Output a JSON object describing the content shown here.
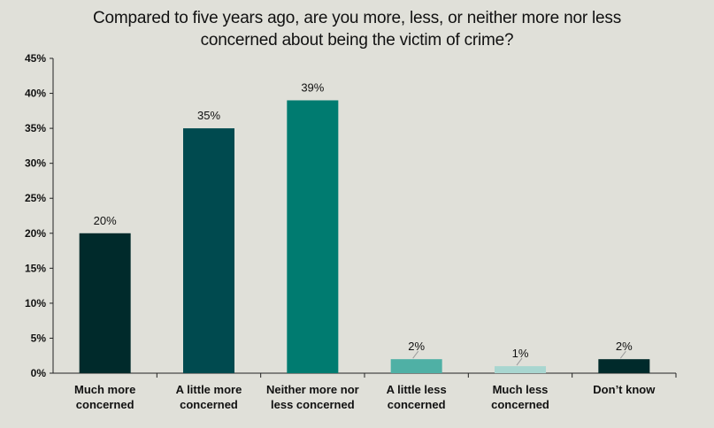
{
  "chart_data": {
    "type": "bar",
    "title_lines": [
      "Compared to five years ago, are you more, less, or neither more nor less",
      "concerned about being the victim of crime?"
    ],
    "categories": [
      [
        "Much more",
        "concerned"
      ],
      [
        "A little more",
        "concerned"
      ],
      [
        "Neither more nor",
        "less concerned"
      ],
      [
        "A little less",
        "concerned"
      ],
      [
        "Much less",
        "concerned"
      ],
      [
        "Don’t know"
      ]
    ],
    "values": [
      20,
      35,
      39,
      2,
      1,
      2
    ],
    "data_labels": [
      "20%",
      "35%",
      "39%",
      "2%",
      "1%",
      "2%"
    ],
    "bar_colors": [
      "#002a2b",
      "#004a4f",
      "#007b70",
      "#4fb0a5",
      "#a8d6d0",
      "#002a2b"
    ],
    "ylim": [
      0,
      45
    ],
    "yticks": [
      0,
      5,
      10,
      15,
      20,
      25,
      30,
      35,
      40,
      45
    ],
    "ytick_labels": [
      "0%",
      "5%",
      "10%",
      "15%",
      "20%",
      "25%",
      "30%",
      "35%",
      "40%",
      "45%"
    ],
    "xlabel": "",
    "ylabel": "",
    "grid": false,
    "legend": "none"
  }
}
